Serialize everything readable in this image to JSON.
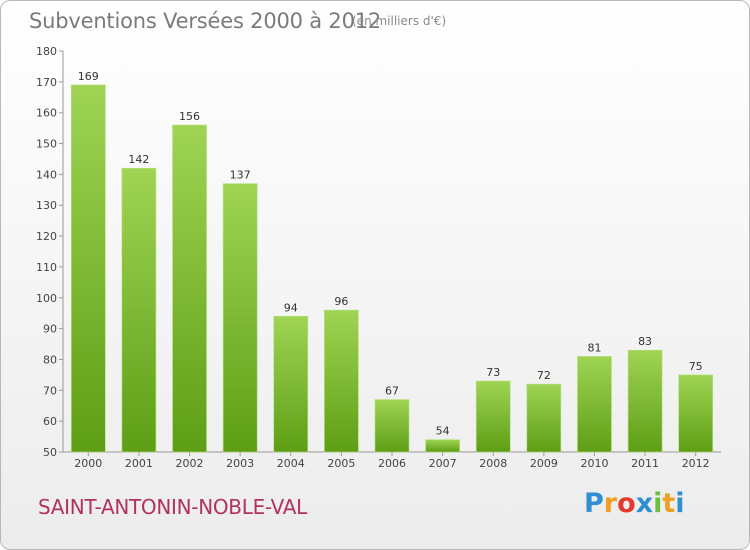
{
  "header": {
    "title": "Subventions Versées 2000 à 2012",
    "subtitle": "(en milliers d'€)"
  },
  "footer": {
    "commune": "SAINT-ANTONIN-NOBLE-VAL",
    "logo_letters": [
      "P",
      "r",
      "o",
      "x",
      "i",
      "t",
      "i"
    ],
    "logo_colors": [
      "#2f8fd0",
      "#f0a020",
      "#e23a2e",
      "#2f8fd0",
      "#6cbf3a",
      "#f0a020",
      "#2f8fd0"
    ]
  },
  "chart_data": {
    "type": "bar",
    "title": "Subventions Versées 2000 à 2012",
    "subtitle": "(en milliers d'€)",
    "categories": [
      "2000",
      "2001",
      "2002",
      "2003",
      "2004",
      "2005",
      "2006",
      "2007",
      "2008",
      "2009",
      "2010",
      "2011",
      "2012"
    ],
    "values": [
      169,
      142,
      156,
      137,
      94,
      96,
      67,
      54,
      73,
      72,
      81,
      83,
      75
    ],
    "ylim": [
      50,
      180
    ],
    "yticks": [
      50,
      60,
      70,
      80,
      90,
      100,
      110,
      120,
      130,
      140,
      150,
      160,
      170,
      180
    ],
    "grid": false,
    "bar_color_top": "#9fd454",
    "bar_color_bottom": "#5e9e16"
  }
}
